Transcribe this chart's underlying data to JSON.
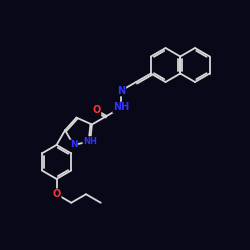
{
  "background_color": "#080818",
  "bond_color": "#d8d8d8",
  "atom_colors": {
    "N": "#3333ff",
    "O": "#ff3333",
    "C": "#d8d8d8"
  },
  "figsize": [
    2.5,
    2.5
  ],
  "dpi": 100
}
